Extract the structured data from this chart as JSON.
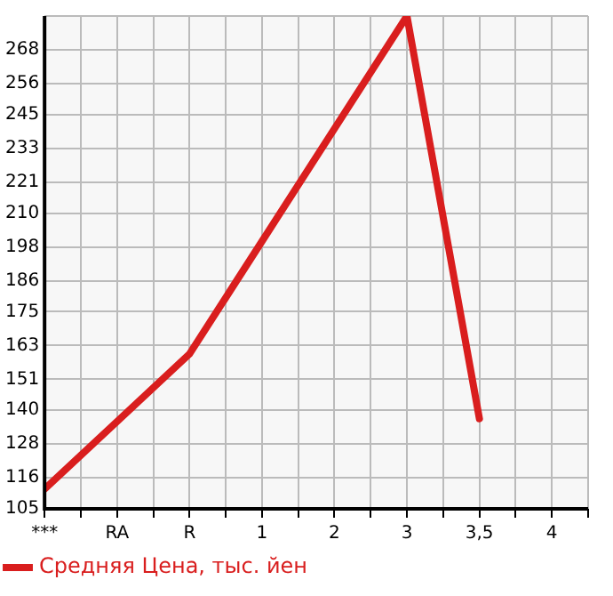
{
  "chart_data": {
    "type": "line",
    "categories": [
      "***",
      "RA",
      "R",
      "1",
      "2",
      "3",
      "3,5",
      "4"
    ],
    "series": [
      {
        "name": "Средняя Цена, тыс. йен",
        "color": "#d91e1e",
        "values": [
          112,
          136,
          160,
          200,
          240,
          280,
          137,
          null
        ]
      }
    ],
    "ylim": [
      105,
      280
    ],
    "yticks": [
      105,
      116,
      128,
      140,
      151,
      163,
      175,
      186,
      198,
      210,
      221,
      233,
      245,
      256,
      268,
      {
        "value": 280,
        "label": null
      }
    ],
    "grid": true,
    "legend": "bottom left",
    "marker": "none",
    "line_style": "solid"
  }
}
